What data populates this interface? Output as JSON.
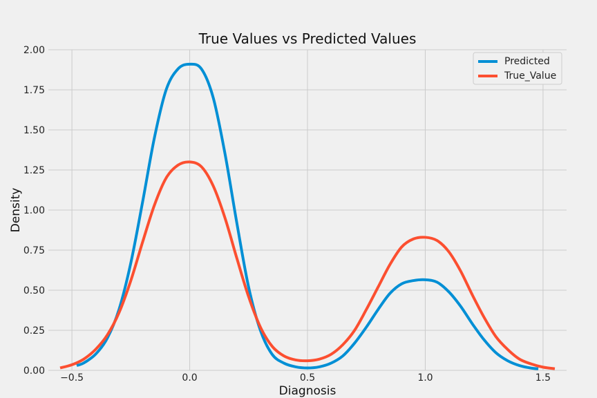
{
  "chart_data": {
    "type": "line",
    "title": "True Values vs Predicted Values",
    "xlabel": "Diagnosis",
    "ylabel": "Density",
    "xlim": [
      -0.6,
      1.6
    ],
    "ylim": [
      0,
      2.0
    ],
    "xticks": [
      -0.5,
      0.0,
      0.5,
      1.0,
      1.5
    ],
    "xtick_labels": [
      "−0.5",
      "0.0",
      "0.5",
      "1.0",
      "1.5"
    ],
    "yticks": [
      0,
      0.25,
      0.5,
      0.75,
      1.0,
      1.25,
      1.5,
      1.75,
      2.0
    ],
    "ytick_labels": [
      "0.00",
      "0.25",
      "0.50",
      "0.75",
      "1.00",
      "1.25",
      "1.50",
      "1.75",
      "2.00"
    ],
    "grid": true,
    "legend_position": "top-right",
    "series": [
      {
        "name": "Predicted",
        "color": "#008fd5",
        "x": [
          -0.48,
          -0.45,
          -0.4,
          -0.35,
          -0.3,
          -0.25,
          -0.2,
          -0.15,
          -0.1,
          -0.05,
          0.0,
          0.05,
          0.1,
          0.15,
          0.2,
          0.25,
          0.3,
          0.35,
          0.4,
          0.45,
          0.5,
          0.55,
          0.6,
          0.65,
          0.7,
          0.75,
          0.8,
          0.85,
          0.9,
          0.95,
          1.0,
          1.05,
          1.1,
          1.15,
          1.2,
          1.25,
          1.3,
          1.35,
          1.4,
          1.45,
          1.48
        ],
        "y": [
          0.03,
          0.046,
          0.1,
          0.2,
          0.38,
          0.67,
          1.05,
          1.45,
          1.75,
          1.88,
          1.91,
          1.88,
          1.7,
          1.35,
          0.92,
          0.52,
          0.25,
          0.1,
          0.045,
          0.022,
          0.015,
          0.022,
          0.045,
          0.09,
          0.17,
          0.27,
          0.38,
          0.48,
          0.54,
          0.56,
          0.565,
          0.55,
          0.49,
          0.4,
          0.29,
          0.19,
          0.11,
          0.06,
          0.03,
          0.014,
          0.01
        ]
      },
      {
        "name": "True_Value",
        "color": "#fc4f30",
        "x": [
          -0.55,
          -0.5,
          -0.45,
          -0.4,
          -0.35,
          -0.3,
          -0.25,
          -0.2,
          -0.15,
          -0.1,
          -0.05,
          0.0,
          0.05,
          0.1,
          0.15,
          0.2,
          0.25,
          0.3,
          0.35,
          0.4,
          0.45,
          0.5,
          0.55,
          0.6,
          0.65,
          0.7,
          0.75,
          0.8,
          0.85,
          0.9,
          0.95,
          1.0,
          1.05,
          1.1,
          1.15,
          1.2,
          1.25,
          1.3,
          1.35,
          1.4,
          1.45,
          1.5,
          1.55
        ],
        "y": [
          0.015,
          0.035,
          0.07,
          0.13,
          0.22,
          0.36,
          0.56,
          0.8,
          1.03,
          1.2,
          1.28,
          1.3,
          1.27,
          1.15,
          0.95,
          0.7,
          0.46,
          0.27,
          0.15,
          0.09,
          0.065,
          0.06,
          0.07,
          0.1,
          0.16,
          0.25,
          0.38,
          0.52,
          0.66,
          0.77,
          0.82,
          0.83,
          0.81,
          0.74,
          0.62,
          0.47,
          0.33,
          0.21,
          0.13,
          0.07,
          0.04,
          0.02,
          0.01
        ]
      }
    ]
  }
}
